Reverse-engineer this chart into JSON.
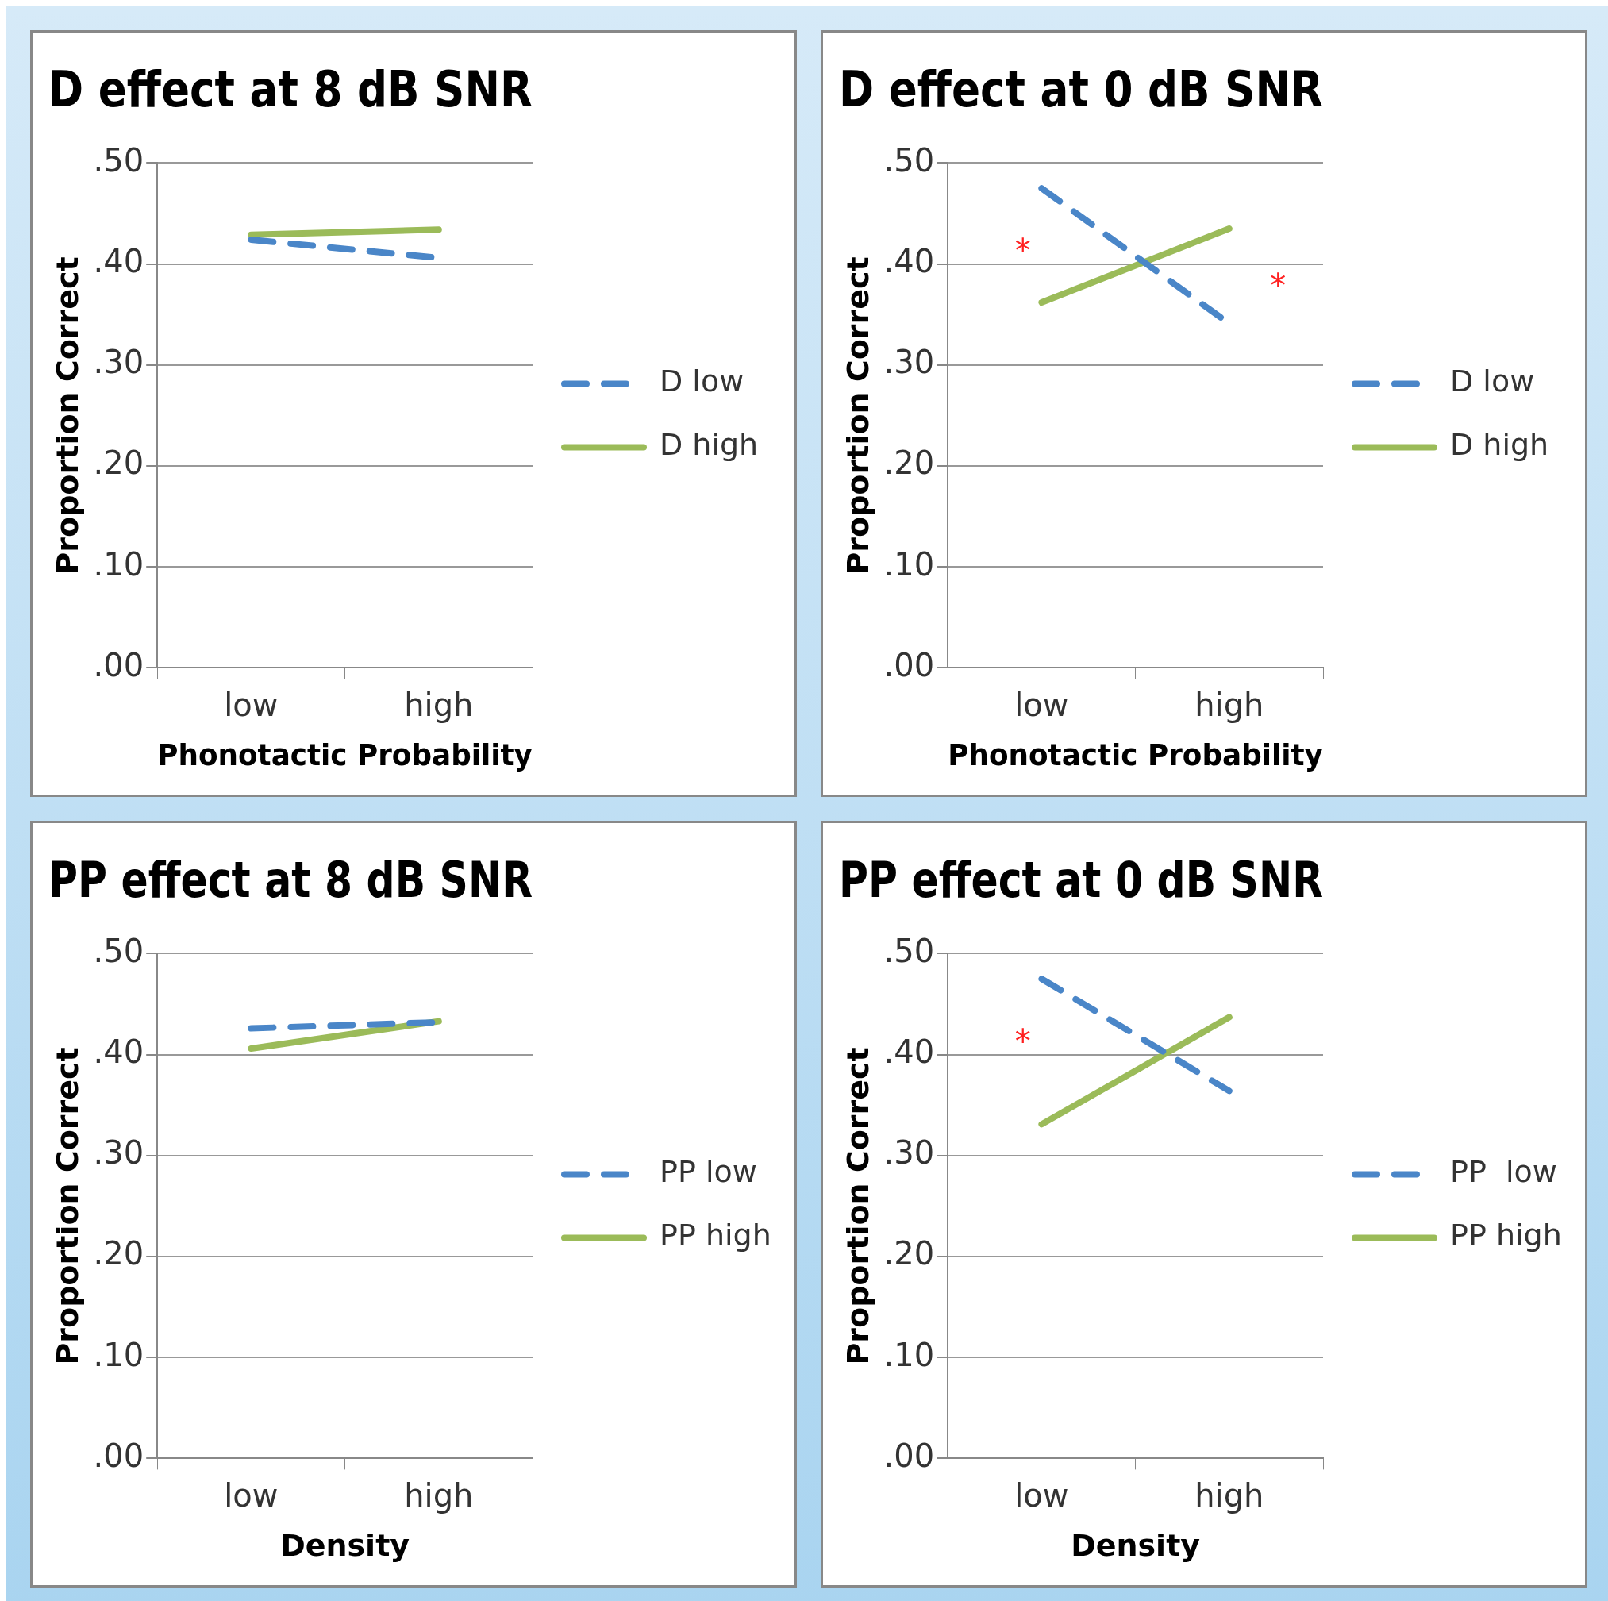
{
  "chart_data": [
    {
      "type": "line",
      "title": "D effect at 8 dB SNR",
      "xlabel": "Phonotactic Probability",
      "ylabel": "Proportion Correct",
      "categories": [
        "low",
        "high"
      ],
      "series": [
        {
          "name": "D low",
          "color": "#4a86c8",
          "line_style": "dashed",
          "values": [
            0.424,
            0.406
          ]
        },
        {
          "name": "D high",
          "color": "#9bbb59",
          "line_style": "solid",
          "values": [
            0.429,
            0.434
          ]
        }
      ],
      "ylim": [
        0,
        0.5
      ],
      "yticks": [
        {
          "value": 0,
          "label": ".00"
        },
        {
          "value": 0.1,
          "label": ".10"
        },
        {
          "value": 0.2,
          "label": ".20"
        },
        {
          "value": 0.3,
          "label": ".30"
        },
        {
          "value": 0.4,
          "label": ".40"
        },
        {
          "value": 0.5,
          "label": ".50"
        }
      ],
      "grid": "y",
      "legend": "right",
      "marker": "none"
    },
    {
      "type": "line",
      "title": "D effect at 0 dB SNR",
      "xlabel": "Phonotactic Probability",
      "ylabel": "Proportion Correct",
      "categories": [
        "low",
        "high"
      ],
      "series": [
        {
          "name": "D low",
          "color": "#4a86c8",
          "line_style": "dashed",
          "values": [
            0.475,
            0.341
          ]
        },
        {
          "name": "D high",
          "color": "#9bbb59",
          "line_style": "solid",
          "values": [
            0.362,
            0.435
          ]
        }
      ],
      "ylim": [
        0,
        0.5
      ],
      "yticks": [
        {
          "value": 0,
          "label": ".00"
        },
        {
          "value": 0.1,
          "label": ".10"
        },
        {
          "value": 0.2,
          "label": ".20"
        },
        {
          "value": 0.3,
          "label": ".30"
        },
        {
          "value": 0.4,
          "label": ".40"
        },
        {
          "value": 0.5,
          "label": ".50"
        }
      ],
      "grid": "y",
      "legend": "right",
      "marker": "none",
      "annotations": [
        "*",
        "*"
      ]
    },
    {
      "type": "line",
      "title": "PP effect at 8 dB SNR",
      "xlabel": "Density",
      "ylabel": "Proportion Correct",
      "categories": [
        "low",
        "high"
      ],
      "series": [
        {
          "name": "PP low",
          "color": "#4a86c8",
          "line_style": "dashed",
          "values": [
            0.426,
            0.432
          ]
        },
        {
          "name": "PP high",
          "color": "#9bbb59",
          "line_style": "solid",
          "values": [
            0.406,
            0.433
          ]
        }
      ],
      "ylim": [
        0,
        0.5
      ],
      "yticks": [
        {
          "value": 0,
          "label": ".00"
        },
        {
          "value": 0.1,
          "label": ".10"
        },
        {
          "value": 0.2,
          "label": ".20"
        },
        {
          "value": 0.3,
          "label": ".30"
        },
        {
          "value": 0.4,
          "label": ".40"
        },
        {
          "value": 0.5,
          "label": ".50"
        }
      ],
      "grid": "y",
      "legend": "right",
      "marker": "none"
    },
    {
      "type": "line",
      "title": "PP effect at 0 dB SNR",
      "xlabel": "Density",
      "ylabel": "Proportion Correct",
      "categories": [
        "low",
        "high"
      ],
      "series": [
        {
          "name": "PP  low",
          "color": "#4a86c8",
          "line_style": "dashed",
          "values": [
            0.475,
            0.364
          ]
        },
        {
          "name": "PP high",
          "color": "#9bbb59",
          "line_style": "solid",
          "values": [
            0.331,
            0.437
          ]
        }
      ],
      "ylim": [
        0,
        0.5
      ],
      "yticks": [
        {
          "value": 0,
          "label": ".00"
        },
        {
          "value": 0.1,
          "label": ".10"
        },
        {
          "value": 0.2,
          "label": ".20"
        },
        {
          "value": 0.3,
          "label": ".30"
        },
        {
          "value": 0.4,
          "label": ".40"
        },
        {
          "value": 0.5,
          "label": ".50"
        }
      ],
      "grid": "y",
      "legend": "right",
      "marker": "none",
      "annotations": [
        "*"
      ]
    }
  ]
}
